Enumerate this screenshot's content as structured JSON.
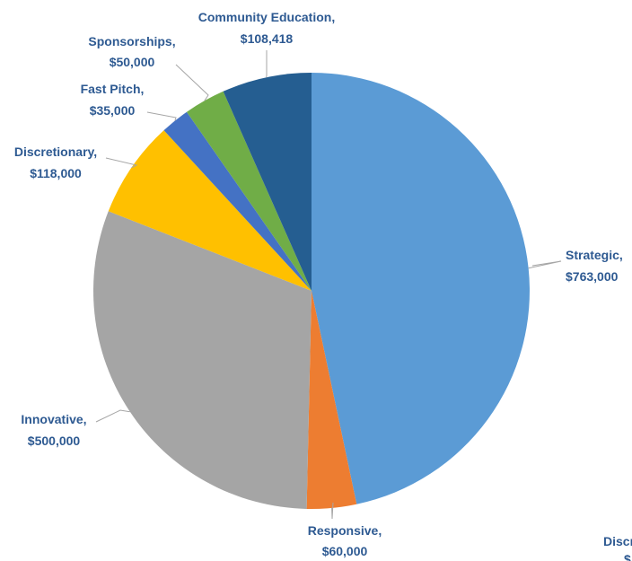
{
  "chart_data": {
    "type": "pie",
    "slices": [
      {
        "name": "Strategic",
        "label": "Strategic,",
        "value_text": "$763,000",
        "value": 763000,
        "color": "#5b9bd5"
      },
      {
        "name": "Responsive",
        "label": "Responsive,",
        "value_text": "$60,000",
        "value": 60000,
        "color": "#ed7d31"
      },
      {
        "name": "Innovative",
        "label": "Innovative,",
        "value_text": "$500,000",
        "value": 500000,
        "color": "#a5a5a5"
      },
      {
        "name": "Discretionary",
        "label": "Discretionary,",
        "value_text": "$118,000",
        "value": 118000,
        "color": "#ffc000"
      },
      {
        "name": "Fast Pitch",
        "label": "Fast Pitch,",
        "value_text": "$35,000",
        "value": 35000,
        "color": "#4472c4"
      },
      {
        "name": "Sponsorships",
        "label": "Sponsorships,",
        "value_text": "$50,000",
        "value": 50000,
        "color": "#70ad47"
      },
      {
        "name": "Community Education",
        "label": "Community Education,",
        "value_text": "$108,418",
        "value": 108418,
        "color": "#255e91"
      }
    ],
    "start_angle_deg": 0,
    "direction": "clockwise",
    "legend": "none",
    "partial_label": "Discr"
  }
}
